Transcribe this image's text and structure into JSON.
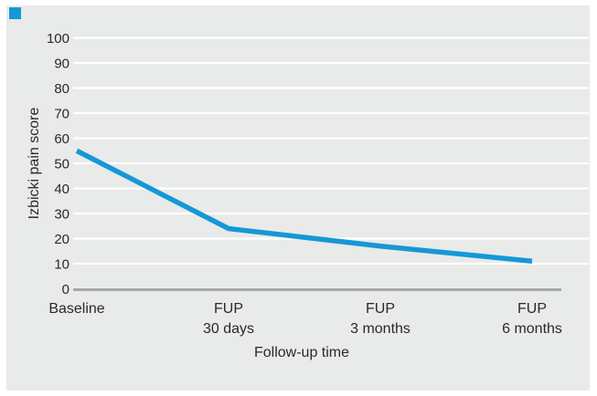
{
  "figure": {
    "bullet_color": "#1598d6",
    "panel_color": "#e9eaea",
    "background_color": "#ffffff"
  },
  "chart_data": {
    "type": "line",
    "categories": [
      "Baseline",
      "FUP 30 days",
      "FUP 3 months",
      "FUP 6 months"
    ],
    "category_lines": [
      [
        "Baseline"
      ],
      [
        "FUP",
        "30 days"
      ],
      [
        "FUP",
        "3 months"
      ],
      [
        "FUP",
        "6 months"
      ]
    ],
    "values": [
      55,
      24,
      17,
      11
    ],
    "series_name": "Izbicki pain score",
    "title": "",
    "xlabel": "Follow-up time",
    "ylabel": "Izbicki pain score",
    "ylim": [
      0,
      100
    ],
    "yticks": [
      0,
      10,
      20,
      30,
      40,
      50,
      60,
      70,
      80,
      90,
      100
    ],
    "grid": true,
    "legend_position": "none",
    "line_color": "#1598d6",
    "gridline_color": "#ffffff",
    "axis_line_color": "#a6a8a8",
    "text_color": "#2a2a28"
  }
}
